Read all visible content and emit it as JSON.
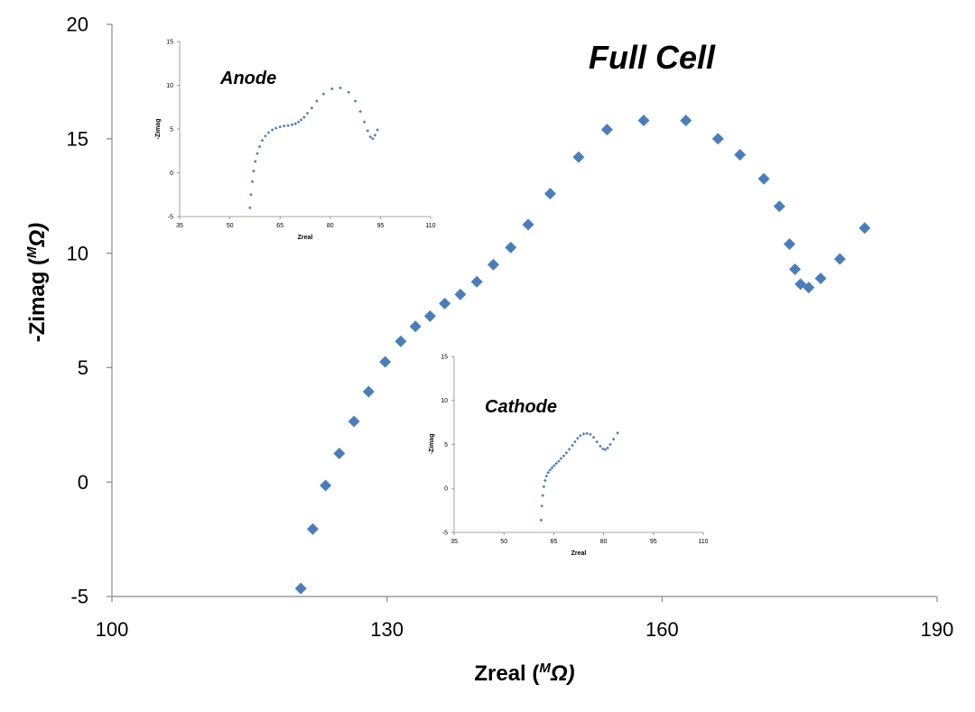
{
  "chart_data": [
    {
      "id": "full-cell",
      "type": "scatter",
      "title": "Full Cell",
      "xlabel": "Zreal (",
      "xlabel_sup": "M",
      "xlabel_unit": "Ω)",
      "ylabel": "-Zimag (",
      "ylabel_sup": "M",
      "ylabel_unit": "Ω)",
      "xlim": [
        100,
        190
      ],
      "ylim": [
        -5,
        20
      ],
      "xticks": [
        100,
        130,
        160,
        190
      ],
      "yticks": [
        -5,
        0,
        5,
        10,
        15,
        20
      ],
      "grid": false,
      "marker": "diamond",
      "color": "#4A7EBB",
      "series": [
        {
          "x": [
            120.6,
            121.9,
            123.3,
            124.8,
            126.4,
            128.0,
            129.8,
            131.5,
            133.1,
            134.7,
            136.3,
            138.0,
            139.8,
            141.6,
            143.5,
            145.4,
            147.8,
            150.9,
            154.0,
            158.0,
            162.6,
            166.1,
            168.5,
            171.1,
            172.8,
            173.9,
            174.5,
            175.1,
            176.0,
            177.3,
            179.4,
            182.1
          ],
          "y": [
            -4.65,
            -2.05,
            -0.15,
            1.25,
            2.65,
            3.95,
            5.25,
            6.15,
            6.8,
            7.25,
            7.8,
            8.2,
            8.75,
            9.5,
            10.25,
            11.25,
            12.6,
            14.2,
            15.4,
            15.8,
            15.8,
            15.0,
            14.3,
            13.25,
            12.05,
            10.4,
            9.3,
            8.65,
            8.5,
            8.9,
            9.75,
            11.1
          ]
        }
      ]
    },
    {
      "id": "anode-inset",
      "type": "scatter",
      "title": "Anode",
      "xlabel": "Zreal",
      "ylabel": "-Zimag",
      "xlim": [
        35,
        110
      ],
      "ylim": [
        -5,
        15
      ],
      "xticks": [
        35,
        50,
        65,
        80,
        95,
        110
      ],
      "yticks": [
        -5,
        0,
        5,
        10,
        15
      ],
      "grid": false,
      "marker": "diamond",
      "color": "#4A7EBB",
      "series": [
        {
          "x": [
            56.0,
            56.3,
            56.7,
            57.1,
            57.6,
            58.2,
            58.9,
            59.7,
            60.6,
            61.6,
            62.7,
            63.8,
            65.0,
            66.2,
            67.4,
            68.6,
            69.6,
            70.5,
            71.3,
            72.2,
            73.2,
            74.5,
            76.0,
            78.0,
            80.5,
            83.0,
            85.5,
            87.5,
            89.0,
            90.2,
            91.2,
            92.0,
            92.7,
            93.4,
            94.1
          ],
          "y": [
            -4.0,
            -2.5,
            -1.0,
            0.2,
            1.3,
            2.2,
            3.0,
            3.7,
            4.2,
            4.6,
            4.9,
            5.1,
            5.25,
            5.35,
            5.4,
            5.5,
            5.6,
            5.8,
            6.05,
            6.35,
            6.8,
            7.4,
            8.2,
            9.0,
            9.6,
            9.7,
            9.2,
            8.2,
            7.0,
            5.8,
            4.8,
            4.1,
            3.9,
            4.3,
            4.9
          ]
        }
      ]
    },
    {
      "id": "cathode-inset",
      "type": "scatter",
      "title": "Cathode",
      "xlabel": "Zreal",
      "ylabel": "-Zimag",
      "xlim": [
        35,
        110
      ],
      "ylim": [
        -5,
        15
      ],
      "xticks": [
        35,
        50,
        65,
        80,
        95,
        110
      ],
      "yticks": [
        -5,
        0,
        5,
        10,
        15
      ],
      "grid": false,
      "marker": "diamond",
      "color": "#4A7EBB",
      "series": [
        {
          "x": [
            61.2,
            61.4,
            61.7,
            62.0,
            62.4,
            62.8,
            63.3,
            63.9,
            64.5,
            65.1,
            65.8,
            66.5,
            67.2,
            68.0,
            68.8,
            69.7,
            70.6,
            71.4,
            72.2,
            73.0,
            74.0,
            75.0,
            76.0,
            77.0,
            78.0,
            79.0,
            79.8,
            80.5,
            81.2,
            82.0,
            83.0,
            84.2
          ],
          "y": [
            -3.6,
            -2.0,
            -0.8,
            0.2,
            0.9,
            1.4,
            1.8,
            2.1,
            2.35,
            2.6,
            2.85,
            3.1,
            3.4,
            3.7,
            4.05,
            4.45,
            4.9,
            5.3,
            5.7,
            6.0,
            6.2,
            6.25,
            6.15,
            5.8,
            5.3,
            4.8,
            4.5,
            4.4,
            4.6,
            5.0,
            5.6,
            6.3
          ]
        }
      ]
    }
  ]
}
